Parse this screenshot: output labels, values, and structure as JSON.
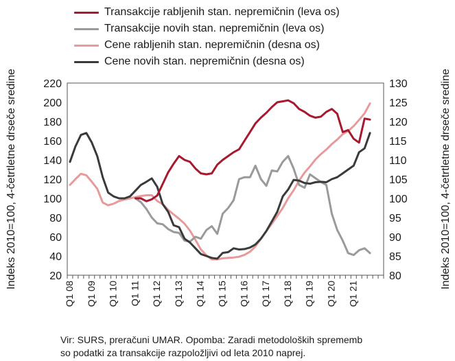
{
  "legend": {
    "items": [
      {
        "label": "Transakcije rabljenih stan. nepremičnin (leva os)",
        "color": "#a6192e"
      },
      {
        "label": "Transakcije novih stan. nepremičnin (leva os)",
        "color": "#9a9a9a"
      },
      {
        "label": "Cene rabljenih stan. nepremičnin (desna os)",
        "color": "#e89a9a"
      },
      {
        "label": "Cene novih stan. nepremičnin (desna os)",
        "color": "#3a3a3a"
      }
    ]
  },
  "note": {
    "line1": "Vir: SURS, preračuni UMAR. Opomba: Zaradi metodoloških sprememb",
    "line2": "so podatki za transakcije razpoložljivi od leta 2010 naprej."
  },
  "chart_data": {
    "type": "line",
    "ylabel_left": "Indeks 2010=100, 4-četrtletne drseče sredine",
    "ylabel_right": "Indeks 2010=100, 4-četrtletne drseče sredine",
    "ylim_left": [
      20,
      220
    ],
    "ylim_right": [
      80,
      130
    ],
    "yticks_left": [
      20,
      40,
      60,
      80,
      100,
      120,
      140,
      160,
      180,
      200,
      220
    ],
    "yticks_right": [
      80,
      85,
      90,
      95,
      100,
      105,
      110,
      115,
      120,
      125,
      130
    ],
    "xtick_labels": [
      "Q1 08",
      "Q1 09",
      "Q1 10",
      "Q1 11",
      "Q1 12",
      "Q1 13",
      "Q1 14",
      "Q1 15",
      "Q1 16",
      "Q1 17",
      "Q1 18",
      "Q1 19",
      "Q1 20",
      "Q1 21"
    ],
    "x_quarters_total": 58,
    "grid": false,
    "series": [
      {
        "name": "Transakcije rabljenih stan. nepremičnin (leva os)",
        "axis": "left",
        "color": "#a6192e",
        "start_index": 12,
        "values": [
          100,
          100,
          97,
          99,
          103,
          115,
          127,
          136,
          144,
          140,
          138,
          131,
          126,
          125,
          126,
          135,
          140,
          144,
          148,
          151,
          160,
          169,
          178,
          184,
          189,
          195,
          200,
          201,
          202,
          199,
          193,
          190,
          186,
          184,
          185,
          190,
          193,
          188,
          169,
          171,
          162,
          158,
          183,
          182
        ]
      },
      {
        "name": "Transakcije novih stan. nepremičnin (leva os)",
        "axis": "left",
        "color": "#9a9a9a",
        "start_index": 12,
        "values": [
          100,
          96,
          89,
          80,
          74,
          73,
          68,
          65,
          64,
          56,
          55,
          60,
          58,
          67,
          71,
          63,
          84,
          90,
          98,
          120,
          122,
          122,
          134,
          120,
          113,
          129,
          128,
          138,
          144,
          131,
          114,
          111,
          125,
          121,
          117,
          114,
          84,
          67,
          56,
          43,
          41,
          46,
          48,
          43
        ]
      },
      {
        "name": "Cene rabljenih stan. nepremičnin (desna os)",
        "axis": "right",
        "color": "#e89a9a",
        "start_index": 0,
        "values": [
          103.5,
          105.0,
          106.4,
          106.0,
          104.3,
          102.5,
          98.9,
          98.2,
          98.6,
          99.3,
          99.7,
          100.0,
          100.3,
          100.6,
          100.8,
          100.8,
          99.3,
          98.5,
          97.0,
          95.8,
          94.7,
          93.4,
          91.6,
          89.2,
          86.7,
          85.2,
          84.1,
          84.1,
          84.4,
          84.5,
          84.6,
          84.8,
          85.3,
          86.1,
          87.5,
          89.5,
          91.5,
          93.4,
          95.4,
          97.5,
          100.0,
          102.1,
          104.6,
          106.7,
          108.3,
          110.1,
          111.5,
          112.7,
          114.1,
          115.3,
          116.7,
          117.5,
          118.8,
          120.4,
          122.1,
          124.7
        ]
      },
      {
        "name": "Cene novih stan. nepremičnin (desna os)",
        "axis": "right",
        "color": "#3a3a3a",
        "start_index": 0,
        "values": [
          109.5,
          113.5,
          116.5,
          117.0,
          114.5,
          111.0,
          105.5,
          101.5,
          100.5,
          100.0,
          100.0,
          100.5,
          102.0,
          103.5,
          104.3,
          105.2,
          103.0,
          98.5,
          96.5,
          93.0,
          92.5,
          89.5,
          88.5,
          87.0,
          85.5,
          85.0,
          84.5,
          84.3,
          85.8,
          86.0,
          87.0,
          86.7,
          86.8,
          87.2,
          88.0,
          89.5,
          91.5,
          94.0,
          96.5,
          100.5,
          102.3,
          104.8,
          104.6,
          104.0,
          103.8,
          104.2,
          104.3,
          104.2,
          105.0,
          105.5,
          106.5,
          107.5,
          108.5,
          112.0,
          113.0,
          117.0
        ]
      }
    ]
  }
}
